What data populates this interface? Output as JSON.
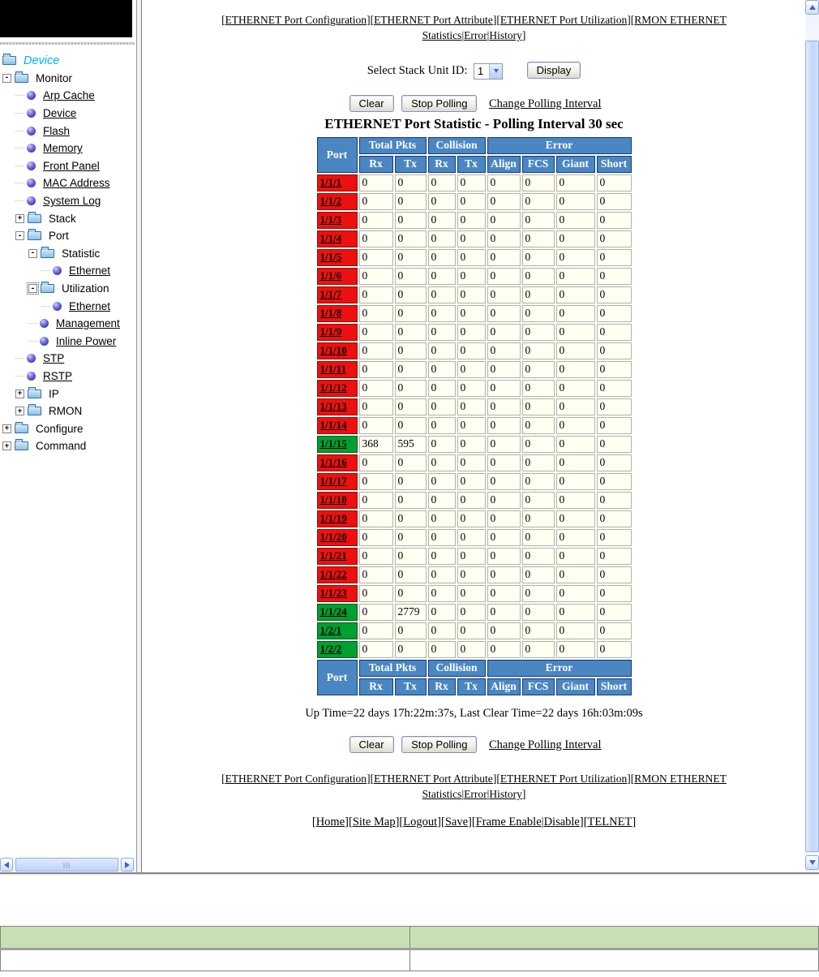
{
  "colors": {
    "header_blue": "#4a86c2",
    "header_border": "#123a7c",
    "port_red": "#ee1010",
    "port_red_border": "#8c1000",
    "port_green": "#00a030",
    "port_green_border": "#005818",
    "cell_bg": "#fffff2",
    "cell_border": "#b2b2a6",
    "device_cyan": "#00b2ee",
    "bottom_green": "#c6e0b4"
  },
  "sidebar": {
    "tree": [
      {
        "label": "Device",
        "depth": 0,
        "icon": "folder-icon",
        "expander": null,
        "link": false,
        "style": "device"
      },
      {
        "label": "Monitor",
        "depth": 0,
        "icon": "folder-icon",
        "expander": "-",
        "link": false
      },
      {
        "label": "Arp Cache",
        "depth": 1,
        "icon": "ball-icon",
        "expander": null,
        "link": true
      },
      {
        "label": "Device",
        "depth": 1,
        "icon": "ball-icon",
        "expander": null,
        "link": true
      },
      {
        "label": "Flash",
        "depth": 1,
        "icon": "ball-icon",
        "expander": null,
        "link": true
      },
      {
        "label": "Memory",
        "depth": 1,
        "icon": "ball-icon",
        "expander": null,
        "link": true
      },
      {
        "label": "Front Panel",
        "depth": 1,
        "icon": "ball-icon",
        "expander": null,
        "link": true
      },
      {
        "label": "MAC Address",
        "depth": 1,
        "icon": "ball-icon",
        "expander": null,
        "link": true
      },
      {
        "label": "System Log",
        "depth": 1,
        "icon": "ball-icon",
        "expander": null,
        "link": true
      },
      {
        "label": "Stack",
        "depth": 1,
        "icon": "folder-icon",
        "expander": "+",
        "link": false
      },
      {
        "label": "Port",
        "depth": 1,
        "icon": "folder-icon",
        "expander": "-",
        "link": false
      },
      {
        "label": "Statistic",
        "depth": 2,
        "icon": "folder-icon",
        "expander": "-",
        "link": false
      },
      {
        "label": "Ethernet",
        "depth": 3,
        "icon": "ball-icon",
        "expander": null,
        "link": true
      },
      {
        "label": "Utilization",
        "depth": 2,
        "icon": "folder-icon",
        "expander": "-",
        "link": false,
        "focused": true
      },
      {
        "label": "Ethernet",
        "depth": 3,
        "icon": "ball-icon",
        "expander": null,
        "link": true
      },
      {
        "label": "Management",
        "depth": 2,
        "icon": "ball-icon",
        "expander": null,
        "link": true
      },
      {
        "label": "Inline Power",
        "depth": 2,
        "icon": "ball-icon",
        "expander": null,
        "link": true
      },
      {
        "label": "STP",
        "depth": 1,
        "icon": "ball-icon",
        "expander": null,
        "link": true
      },
      {
        "label": "RSTP",
        "depth": 1,
        "icon": "ball-icon",
        "expander": null,
        "link": true
      },
      {
        "label": "IP",
        "depth": 1,
        "icon": "folder-icon",
        "expander": "+",
        "link": false
      },
      {
        "label": "RMON",
        "depth": 1,
        "icon": "folder-icon",
        "expander": "+",
        "link": false
      },
      {
        "label": "Configure",
        "depth": 0,
        "icon": "folder-icon",
        "expander": "+",
        "link": false
      },
      {
        "label": "Command",
        "depth": 0,
        "icon": "folder-icon",
        "expander": "+",
        "link": false
      }
    ]
  },
  "nav": {
    "bracket_open": "[",
    "bracket_close": "]",
    "separator": "|",
    "link_groups": [
      [
        "ETHERNET Port Configuration"
      ],
      [
        "ETHERNET Port Attribute"
      ],
      [
        "ETHERNET Port Utilization"
      ],
      [
        "RMON ETHERNET Statistics",
        "Error",
        "History"
      ]
    ]
  },
  "controls": {
    "stack_unit_label": "Select Stack Unit ID:",
    "stack_unit_value": "1",
    "display_button": "Display",
    "clear_button": "Clear",
    "stop_polling_button": "Stop Polling",
    "change_polling_link": "Change Polling Interval"
  },
  "title": "ETHERNET Port Statistic - Polling Interval 30 sec",
  "table": {
    "port_header": "Port",
    "groups": [
      {
        "label": "Total Pkts",
        "span": 2
      },
      {
        "label": "Collision",
        "span": 2
      },
      {
        "label": "Error",
        "span": 4
      }
    ],
    "sub_headers": [
      "Rx",
      "Tx",
      "Rx",
      "Tx",
      "Align",
      "FCS",
      "Giant",
      "Short"
    ],
    "rows": [
      {
        "port": "1/1/1",
        "color": "red",
        "values": [
          "0",
          "0",
          "0",
          "0",
          "0",
          "0",
          "0",
          "0"
        ]
      },
      {
        "port": "1/1/2",
        "color": "red",
        "values": [
          "0",
          "0",
          "0",
          "0",
          "0",
          "0",
          "0",
          "0"
        ]
      },
      {
        "port": "1/1/3",
        "color": "red",
        "values": [
          "0",
          "0",
          "0",
          "0",
          "0",
          "0",
          "0",
          "0"
        ]
      },
      {
        "port": "1/1/4",
        "color": "red",
        "values": [
          "0",
          "0",
          "0",
          "0",
          "0",
          "0",
          "0",
          "0"
        ]
      },
      {
        "port": "1/1/5",
        "color": "red",
        "values": [
          "0",
          "0",
          "0",
          "0",
          "0",
          "0",
          "0",
          "0"
        ]
      },
      {
        "port": "1/1/6",
        "color": "red",
        "values": [
          "0",
          "0",
          "0",
          "0",
          "0",
          "0",
          "0",
          "0"
        ]
      },
      {
        "port": "1/1/7",
        "color": "red",
        "values": [
          "0",
          "0",
          "0",
          "0",
          "0",
          "0",
          "0",
          "0"
        ]
      },
      {
        "port": "1/1/8",
        "color": "red",
        "values": [
          "0",
          "0",
          "0",
          "0",
          "0",
          "0",
          "0",
          "0"
        ]
      },
      {
        "port": "1/1/9",
        "color": "red",
        "values": [
          "0",
          "0",
          "0",
          "0",
          "0",
          "0",
          "0",
          "0"
        ]
      },
      {
        "port": "1/1/10",
        "color": "red",
        "values": [
          "0",
          "0",
          "0",
          "0",
          "0",
          "0",
          "0",
          "0"
        ]
      },
      {
        "port": "1/1/11",
        "color": "red",
        "values": [
          "0",
          "0",
          "0",
          "0",
          "0",
          "0",
          "0",
          "0"
        ]
      },
      {
        "port": "1/1/12",
        "color": "red",
        "values": [
          "0",
          "0",
          "0",
          "0",
          "0",
          "0",
          "0",
          "0"
        ]
      },
      {
        "port": "1/1/13",
        "color": "red",
        "values": [
          "0",
          "0",
          "0",
          "0",
          "0",
          "0",
          "0",
          "0"
        ]
      },
      {
        "port": "1/1/14",
        "color": "red",
        "values": [
          "0",
          "0",
          "0",
          "0",
          "0",
          "0",
          "0",
          "0"
        ]
      },
      {
        "port": "1/1/15",
        "color": "green",
        "values": [
          "368",
          "595",
          "0",
          "0",
          "0",
          "0",
          "0",
          "0"
        ]
      },
      {
        "port": "1/1/16",
        "color": "red",
        "values": [
          "0",
          "0",
          "0",
          "0",
          "0",
          "0",
          "0",
          "0"
        ]
      },
      {
        "port": "1/1/17",
        "color": "red",
        "values": [
          "0",
          "0",
          "0",
          "0",
          "0",
          "0",
          "0",
          "0"
        ]
      },
      {
        "port": "1/1/18",
        "color": "red",
        "values": [
          "0",
          "0",
          "0",
          "0",
          "0",
          "0",
          "0",
          "0"
        ]
      },
      {
        "port": "1/1/19",
        "color": "red",
        "values": [
          "0",
          "0",
          "0",
          "0",
          "0",
          "0",
          "0",
          "0"
        ]
      },
      {
        "port": "1/1/20",
        "color": "red",
        "values": [
          "0",
          "0",
          "0",
          "0",
          "0",
          "0",
          "0",
          "0"
        ]
      },
      {
        "port": "1/1/21",
        "color": "red",
        "values": [
          "0",
          "0",
          "0",
          "0",
          "0",
          "0",
          "0",
          "0"
        ]
      },
      {
        "port": "1/1/22",
        "color": "red",
        "values": [
          "0",
          "0",
          "0",
          "0",
          "0",
          "0",
          "0",
          "0"
        ]
      },
      {
        "port": "1/1/23",
        "color": "red",
        "values": [
          "0",
          "0",
          "0",
          "0",
          "0",
          "0",
          "0",
          "0"
        ]
      },
      {
        "port": "1/1/24",
        "color": "green",
        "values": [
          "0",
          "2779",
          "0",
          "0",
          "0",
          "0",
          "0",
          "0"
        ]
      },
      {
        "port": "1/2/1",
        "color": "green",
        "values": [
          "0",
          "0",
          "0",
          "0",
          "0",
          "0",
          "0",
          "0"
        ]
      },
      {
        "port": "1/2/2",
        "color": "green",
        "values": [
          "0",
          "0",
          "0",
          "0",
          "0",
          "0",
          "0",
          "0"
        ]
      }
    ]
  },
  "status": {
    "uptime_line": "Up Time=22 days 17h:22m:37s, Last Clear Time=22 days 16h:03m:09s"
  },
  "quick_links": {
    "link_groups": [
      [
        "Home"
      ],
      [
        "Site Map"
      ],
      [
        "Logout"
      ],
      [
        "Save"
      ],
      [
        "Frame Enable",
        "Disable"
      ],
      [
        "TELNET"
      ]
    ]
  }
}
